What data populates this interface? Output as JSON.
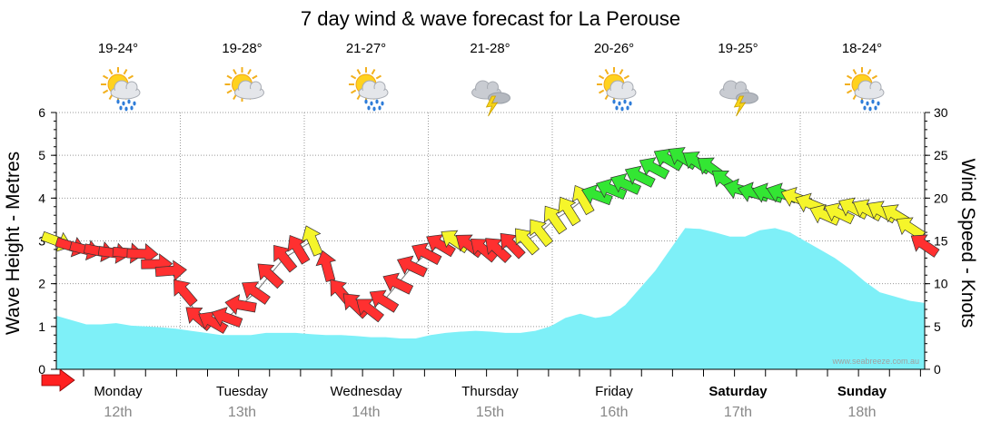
{
  "chart_data": {
    "type": "area",
    "title": "7 day wind & wave forecast for La Perouse",
    "watermark": "www.seabreeze.com.au",
    "ylabel_left": "Wave Height - Metres",
    "ylabel_right": "Wind Speed - Knots",
    "ylim_left": [
      0,
      6
    ],
    "ylim_right": [
      0,
      30
    ],
    "yticks_left": [
      "0",
      "1",
      "2",
      "3",
      "4",
      "5",
      "6"
    ],
    "yticks_right": [
      "0",
      "5",
      "10",
      "15",
      "20",
      "25",
      "30"
    ],
    "days": [
      {
        "day": "Monday",
        "date": "12th",
        "temp": "19-24°",
        "icon": "sun-cloud-rain-icon",
        "bold": false
      },
      {
        "day": "Tuesday",
        "date": "13th",
        "temp": "19-28°",
        "icon": "sun-cloud-icon",
        "bold": false
      },
      {
        "day": "Wednesday",
        "date": "14th",
        "temp": "21-27°",
        "icon": "sun-cloud-rain-icon",
        "bold": false
      },
      {
        "day": "Thursday",
        "date": "15th",
        "temp": "21-28°",
        "icon": "storm-icon",
        "bold": false
      },
      {
        "day": "Friday",
        "date": "16th",
        "temp": "20-26°",
        "icon": "sun-cloud-rain-icon",
        "bold": false
      },
      {
        "day": "Saturday",
        "date": "17th",
        "temp": "19-25°",
        "icon": "storm-icon",
        "bold": true
      },
      {
        "day": "Sunday",
        "date": "18th",
        "temp": "18-24°",
        "icon": "sun-cloud-rain-icon",
        "bold": true
      }
    ],
    "wave_height_m": [
      1.25,
      1.15,
      1.05,
      1.05,
      1.08,
      1.02,
      1.0,
      0.98,
      0.95,
      0.9,
      0.85,
      0.8,
      0.8,
      0.8,
      0.85,
      0.85,
      0.85,
      0.82,
      0.8,
      0.8,
      0.78,
      0.75,
      0.75,
      0.72,
      0.72,
      0.8,
      0.85,
      0.88,
      0.9,
      0.88,
      0.85,
      0.85,
      0.9,
      1.0,
      1.2,
      1.3,
      1.2,
      1.25,
      1.5,
      1.9,
      2.3,
      2.8,
      3.3,
      3.28,
      3.2,
      3.1,
      3.1,
      3.25,
      3.3,
      3.2,
      3.0,
      2.8,
      2.6,
      2.35,
      2.05,
      1.8,
      1.7,
      1.6,
      1.55
    ],
    "wind_knots": [
      15,
      14.4,
      14,
      13.8,
      13.6,
      13.6,
      13.5,
      12.3,
      11.5,
      9,
      6,
      5.5,
      6,
      7.5,
      9,
      11,
      13,
      14,
      15,
      12,
      9,
      7.5,
      7,
      8,
      10,
      12,
      13.5,
      14.5,
      15,
      14.5,
      14,
      14,
      14.5,
      15,
      16,
      17.5,
      18.5,
      19.8,
      20.3,
      21,
      21.6,
      22.5,
      23.5,
      24.5,
      24.7,
      24.2,
      23.5,
      22,
      21,
      20.6,
      20.5,
      20.5,
      20,
      19.3,
      18,
      18.2,
      18.8,
      18.6,
      18.4,
      18,
      16.5,
      14.5
    ],
    "wind_arrow_colors": {
      "gt20": "#33e633",
      "15to20": "#f5f52a",
      "10to15": "#ff3030",
      "lt10": "#ff3030"
    },
    "wave_fill_color": "#7ef0f8"
  }
}
